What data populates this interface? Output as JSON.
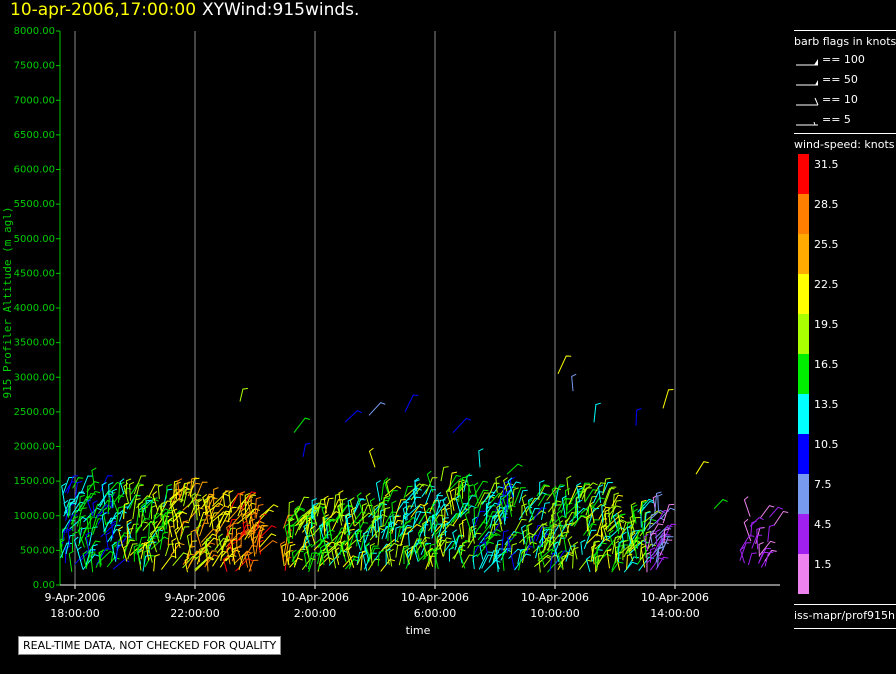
{
  "header": {
    "timestamp": "10-apr-2006,17:00:00",
    "plot_title": "XYWind:915winds."
  },
  "disclaimer": "REAL-TIME DATA, NOT CHECKED FOR QUALITY",
  "legend": {
    "barb_title": "barb flags in knots",
    "barbs": [
      {
        "label": "== 100",
        "kind": "pennant"
      },
      {
        "label": "== 50",
        "kind": "pennant"
      },
      {
        "label": "== 10",
        "kind": "full"
      },
      {
        "label": "== 5",
        "kind": "half"
      }
    ],
    "speed_title": "wind-speed: knots",
    "speed_scale": [
      {
        "label": "31.5",
        "color": "#ff0000"
      },
      {
        "label": "28.5",
        "color": "#ff7f00"
      },
      {
        "label": "25.5",
        "color": "#ffaa00"
      },
      {
        "label": "22.5",
        "color": "#ffff00"
      },
      {
        "label": "19.5",
        "color": "#aaff00"
      },
      {
        "label": "16.5",
        "color": "#00ee00"
      },
      {
        "label": "13.5",
        "color": "#00ffff"
      },
      {
        "label": "10.5",
        "color": "#0000ff"
      },
      {
        "label": "7.5",
        "color": "#7799ee"
      },
      {
        "label": "4.5",
        "color": "#a020f0"
      },
      {
        "label": "1.5",
        "color": "#ee82ee"
      }
    ],
    "source": "iss-mapr/prof915h"
  },
  "chart_data": {
    "type": "scatter",
    "title": "",
    "xlabel": "time",
    "ylabel": "915 Profiler Altitude (m agl)",
    "ylim": [
      0,
      8000
    ],
    "xlim_hours_from_first_tick": [
      -0.5,
      23.5
    ],
    "grid": "vertical lines at x ticks",
    "yticks": [
      "0.00",
      "500.00",
      "1000.00",
      "1500.00",
      "2000.00",
      "2500.00",
      "3000.00",
      "3500.00",
      "4000.00",
      "4500.00",
      "5000.00",
      "5500.00",
      "6000.00",
      "6500.00",
      "7000.00",
      "7500.00",
      "8000.00"
    ],
    "xticks": [
      {
        "date": "9-Apr-2006",
        "time": "18:00:00"
      },
      {
        "date": "9-Apr-2006",
        "time": "22:00:00"
      },
      {
        "date": "10-Apr-2006",
        "time": "2:00:00"
      },
      {
        "date": "10-Apr-2006",
        "time": "6:00:00"
      },
      {
        "date": "10-Apr-2006",
        "time": "10:00:00"
      },
      {
        "date": "10-Apr-2006",
        "time": "14:00:00"
      }
    ],
    "series_description": "wind barbs colored by wind speed, concentrated between 200 and 1500 m agl, sparse points up to about 3100 m"
  }
}
